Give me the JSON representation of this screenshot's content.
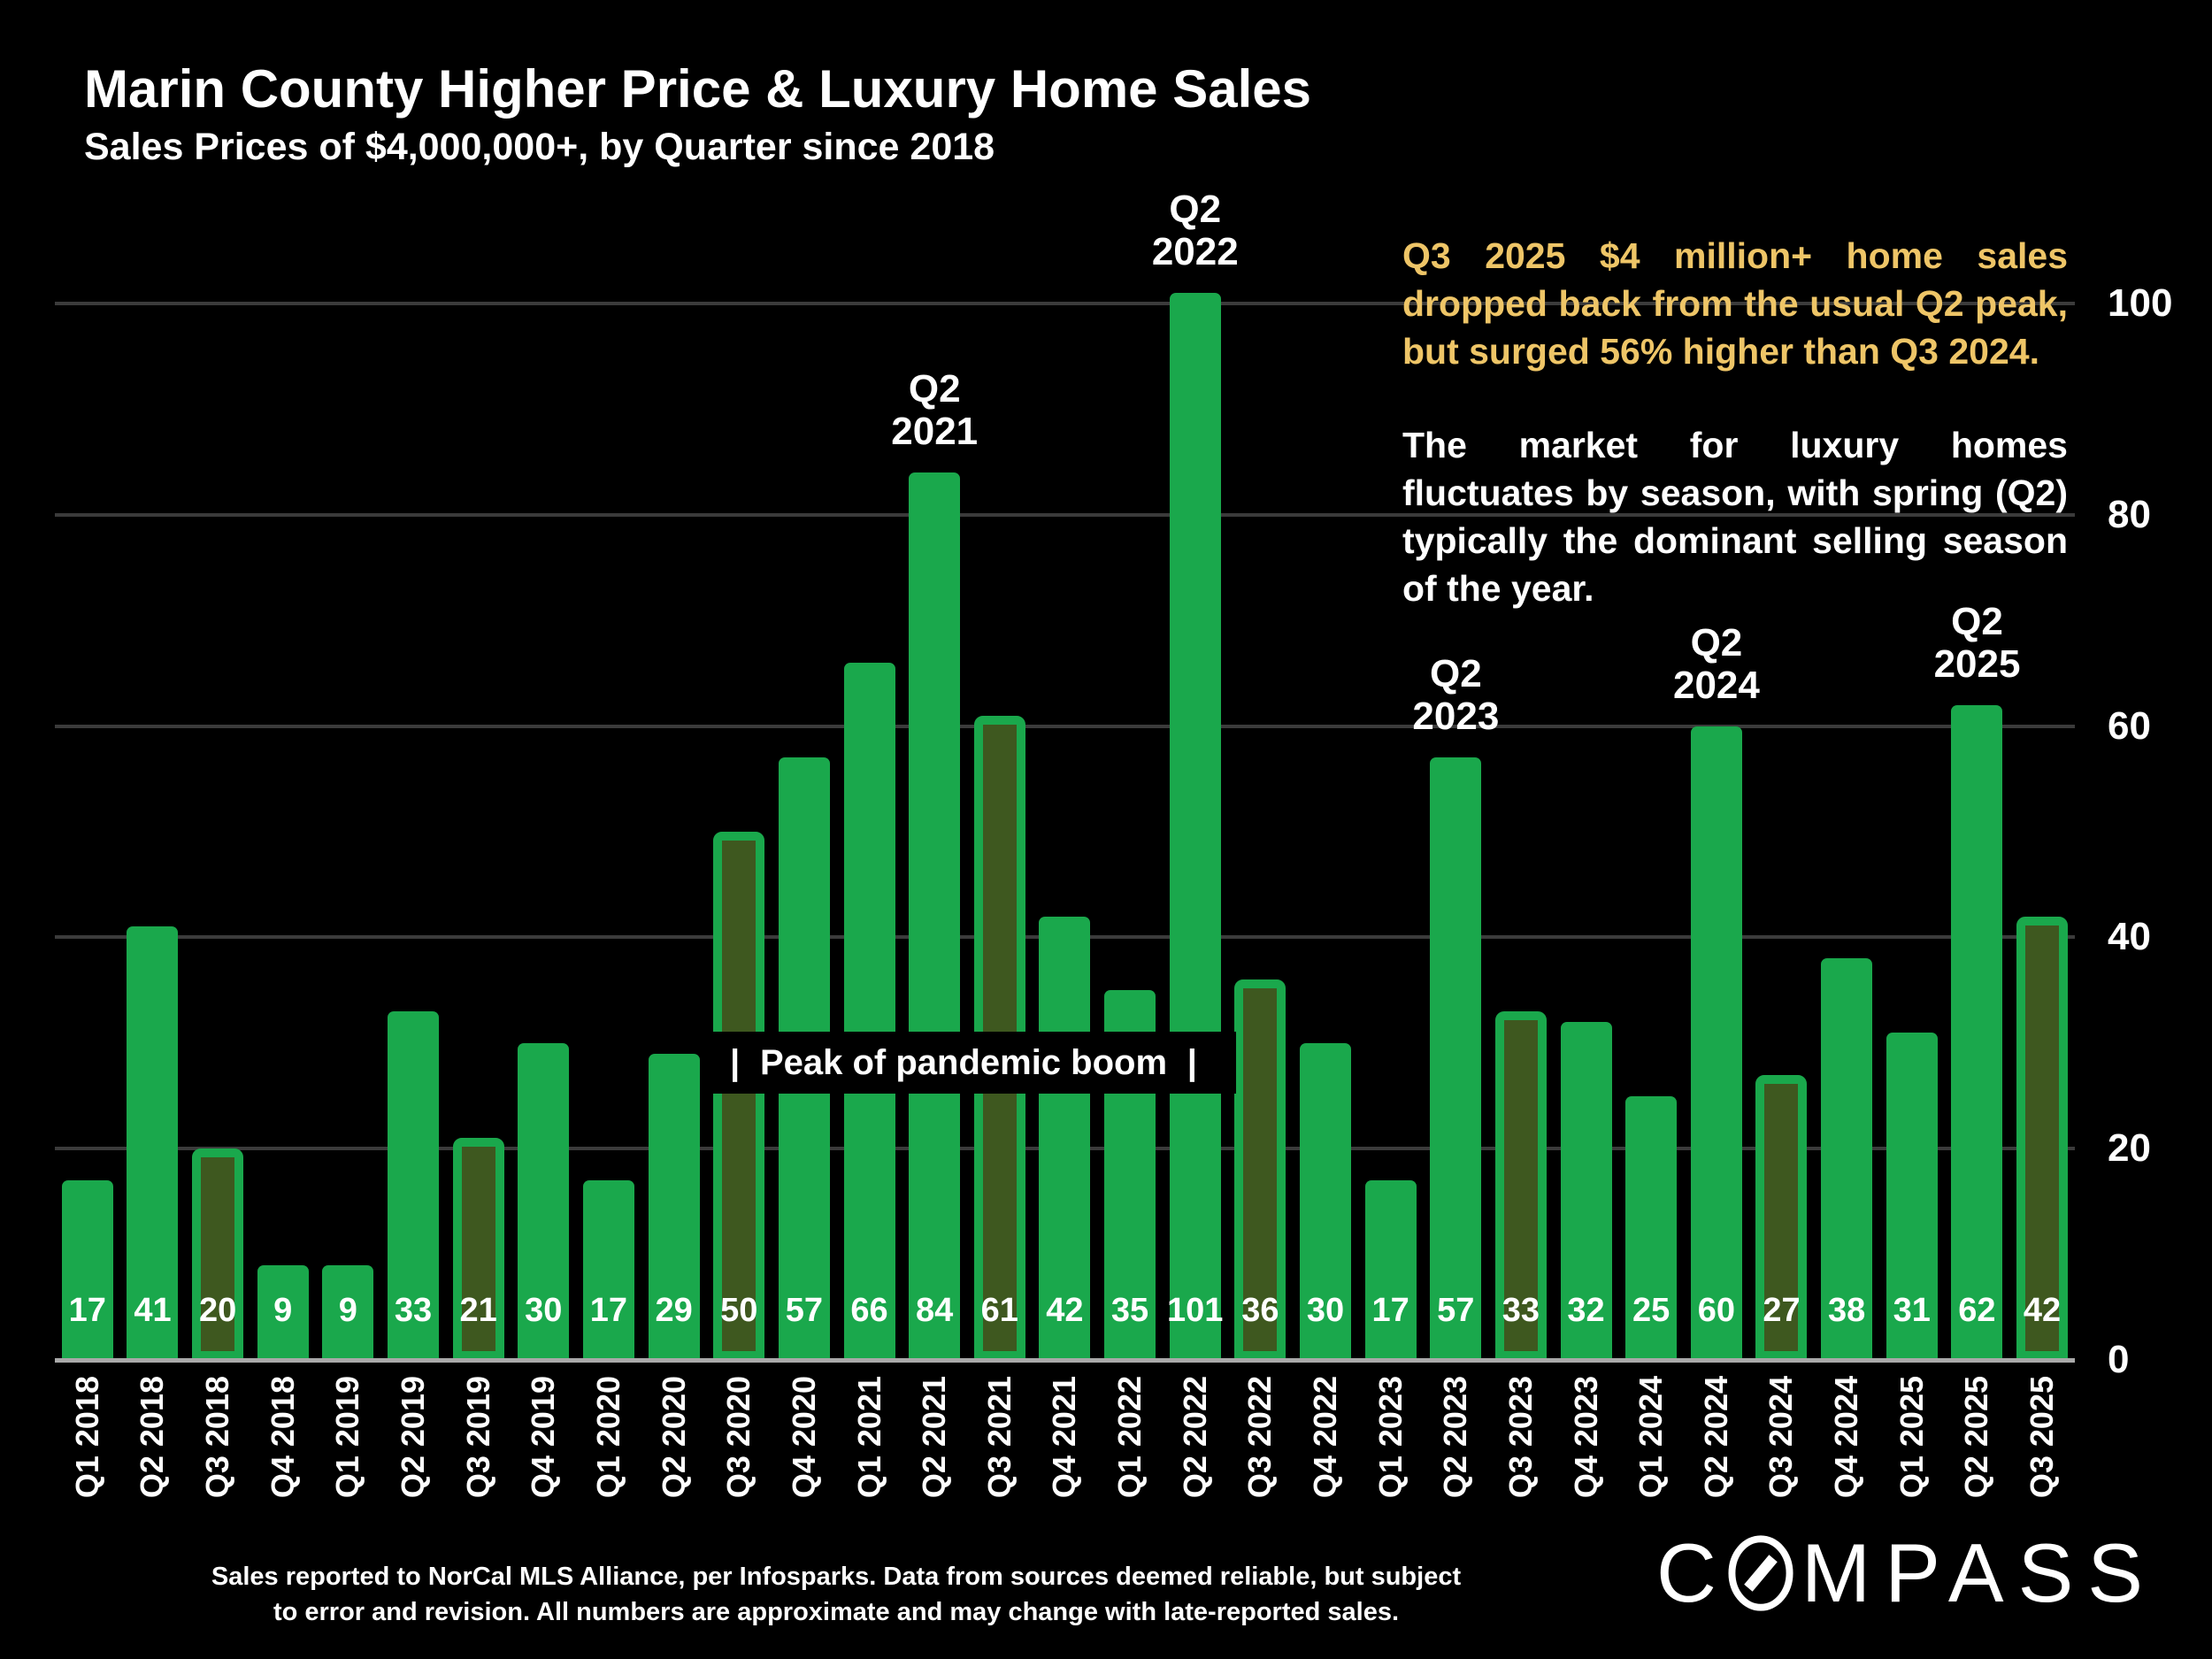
{
  "page": {
    "background": "#000000"
  },
  "header": {
    "title": "Marin County Higher Price & Luxury Home Sales",
    "subtitle": "Sales Prices of $4,000,000+, by Quarter since 2018"
  },
  "chart_data": {
    "type": "bar",
    "title": "Marin County Higher Price & Luxury Home Sales",
    "subtitle": "Sales Prices of $4,000,000+, by Quarter since 2018",
    "categories": [
      "Q1 2018",
      "Q2 2018",
      "Q3 2018",
      "Q4 2018",
      "Q1 2019",
      "Q2 2019",
      "Q3 2019",
      "Q4 2019",
      "Q1 2020",
      "Q2 2020",
      "Q3 2020",
      "Q4 2020",
      "Q1 2021",
      "Q2 2021",
      "Q3 2021",
      "Q4 2021",
      "Q1 2022",
      "Q2 2022",
      "Q3 2022",
      "Q4 2022",
      "Q1 2023",
      "Q2 2023",
      "Q3 2023",
      "Q4 2023",
      "Q1 2024",
      "Q2 2024",
      "Q3 2024",
      "Q4 2024",
      "Q1 2025",
      "Q2 2025",
      "Q3 2025"
    ],
    "values": [
      17,
      41,
      20,
      9,
      9,
      33,
      21,
      30,
      17,
      29,
      50,
      57,
      66,
      84,
      61,
      42,
      35,
      101,
      36,
      30,
      17,
      57,
      33,
      32,
      25,
      60,
      27,
      38,
      31,
      62,
      42
    ],
    "xlabel": "",
    "ylabel": "",
    "ylim": [
      0,
      100
    ],
    "yticks": [
      0,
      20,
      40,
      60,
      80,
      100
    ],
    "grid": "horizontal",
    "legend": "none",
    "bar_color": "#1AA84C",
    "q3_bar_fill": "#3E581F",
    "q3_bar_border": "#1AA84C",
    "gridline_color": "#3b3b3b",
    "axis_color": "#a9a9a9",
    "value_label_color": "#ffffff",
    "highlight_rule": "Q3 quarters drawn with dark olive fill and bright green border",
    "peaks": [
      {
        "q": "Q2",
        "year": "2021",
        "category": "Q2 2021"
      },
      {
        "q": "Q2",
        "year": "2022",
        "category": "Q2 2022"
      },
      {
        "q": "Q2",
        "year": "2023",
        "category": "Q2 2023"
      },
      {
        "q": "Q2",
        "year": "2024",
        "category": "Q2 2024"
      },
      {
        "q": "Q2",
        "year": "2025",
        "category": "Q2 2025"
      }
    ]
  },
  "annotations": {
    "gold_text": "Q3 2025 $4 million+ home sales dropped back from the usual Q2 peak, but surged 56% higher than Q3 2024.",
    "gold_color": "#EEC567",
    "white_text": "The market for luxury homes fluctuates by season, with spring (Q2) typically the dominant selling season of the year.",
    "pandemic_box": {
      "left_pipe": "|",
      "text": "Peak of pandemic boom",
      "right_pipe": "|"
    }
  },
  "footer": {
    "lines": [
      "Sales reported to NorCal MLS Alliance, per Infosparks. Data from sources deemed reliable, but subject",
      "to error and revision. All numbers are approximate and may change with late-reported sales."
    ]
  },
  "logo": {
    "name": "COMPASS",
    "prefix": "C",
    "suffix": "MPASS"
  }
}
